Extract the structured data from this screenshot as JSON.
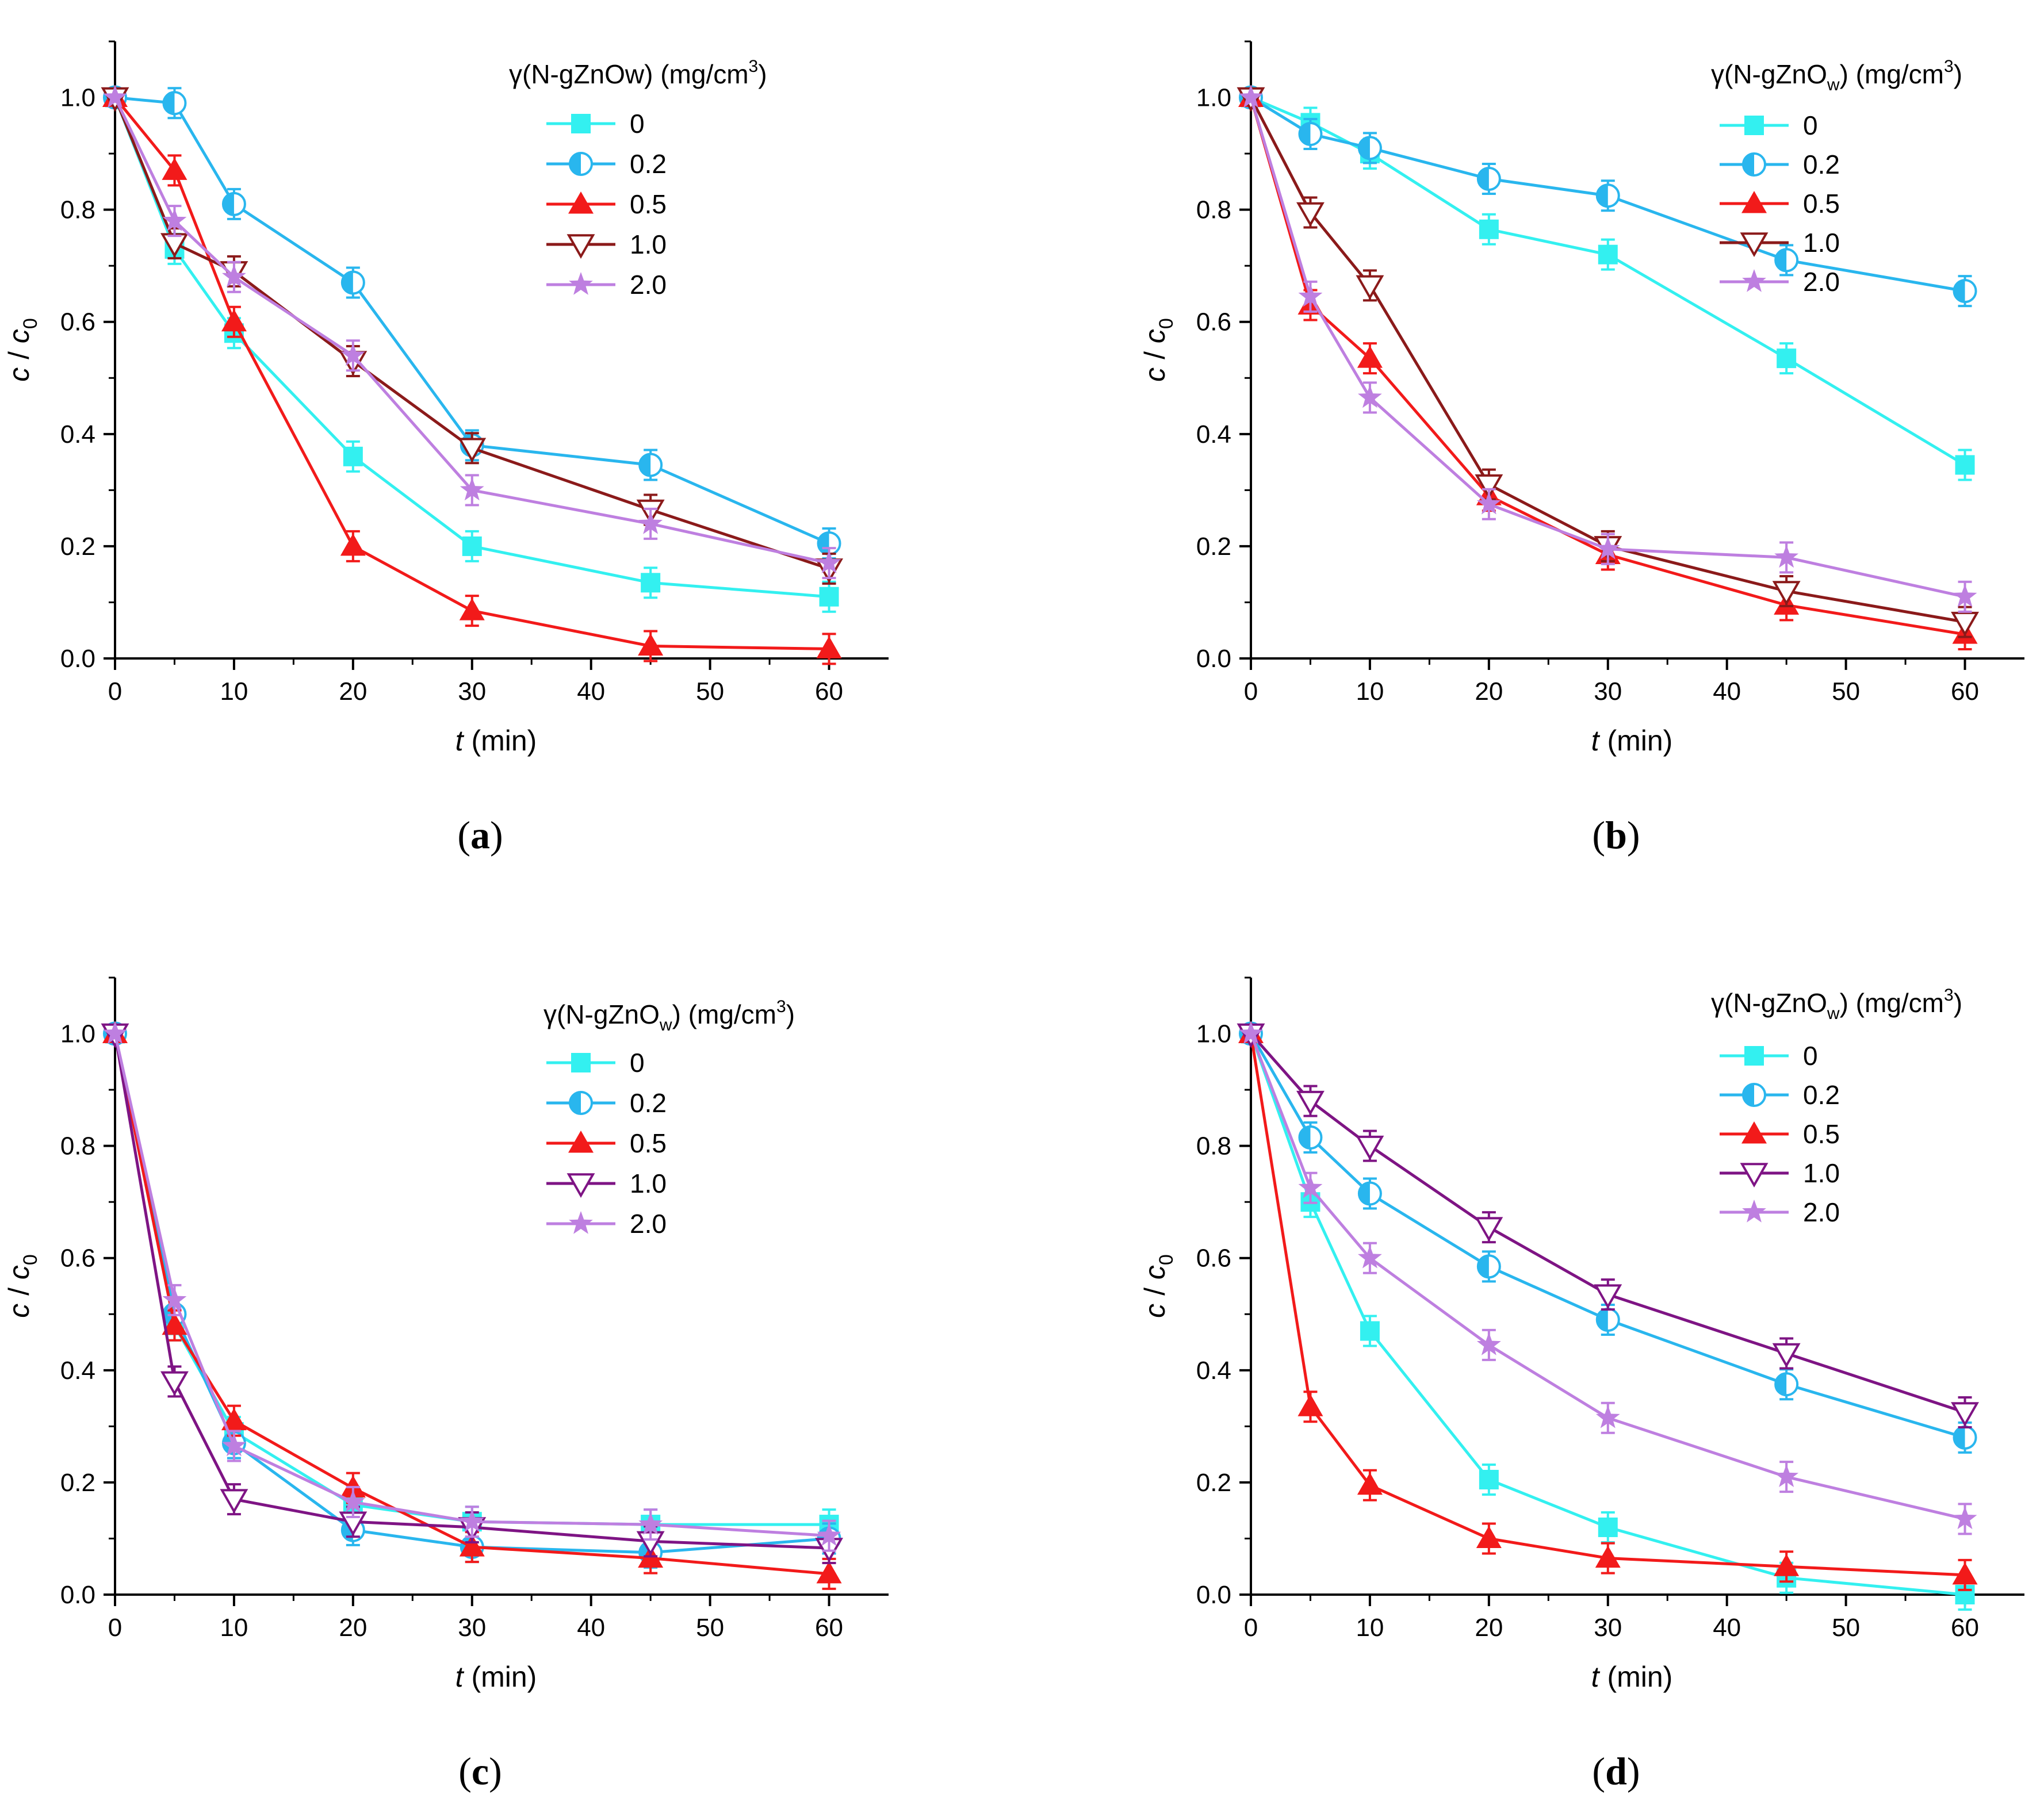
{
  "colors": {
    "s0": "#33F0F0",
    "s02": "#29B6EE",
    "s05": "#F21A1A",
    "s10_a": "#8B1A1A",
    "s10_b": "#8B1A1A",
    "s10_c": "#7E1484",
    "s10_d": "#7E1484",
    "s20": "#BE7FE0"
  },
  "chart_data": [
    {
      "type": "line",
      "panel_label": "a",
      "legend_title": "γ(N-gZnOw) (mg/cm³)",
      "legend_title_parts": {
        "main": "γ(N-gZnOw) (mg/cm",
        "sup": "3",
        "close": ")"
      },
      "legend_placement": "top-right",
      "xlabel": {
        "italic": "t",
        "rest": " (min)"
      },
      "ylabel": {
        "italic_c": "c",
        "slash": " / ",
        "italic_c0": "c",
        "sub": "0"
      },
      "xlim": [
        0,
        65
      ],
      "ylim": [
        0,
        1.1
      ],
      "xticks": [
        "0",
        "10",
        "20",
        "30",
        "40",
        "50",
        "60"
      ],
      "yticks": [
        "0.0",
        "0.2",
        "0.4",
        "0.6",
        "0.8",
        "1.0"
      ],
      "x": [
        0,
        5,
        10,
        20,
        30,
        45,
        60
      ],
      "series": [
        {
          "name": "0",
          "marker": "square",
          "values": [
            1.0,
            0.73,
            0.58,
            0.36,
            0.2,
            0.135,
            0.11
          ]
        },
        {
          "name": "0.2",
          "marker": "halfcircle",
          "values": [
            1.0,
            0.99,
            0.81,
            0.67,
            0.38,
            0.345,
            0.205
          ]
        },
        {
          "name": "0.5",
          "marker": "triangle-up",
          "values": [
            1.0,
            0.87,
            0.6,
            0.2,
            0.085,
            0.022,
            0.017
          ]
        },
        {
          "name": "1.0",
          "marker": "triangle-down",
          "values": [
            1.0,
            0.74,
            0.69,
            0.53,
            0.375,
            0.265,
            0.16
          ]
        },
        {
          "name": "2.0",
          "marker": "star",
          "values": [
            1.0,
            0.78,
            0.68,
            0.54,
            0.3,
            0.24,
            0.17
          ]
        }
      ]
    },
    {
      "type": "line",
      "panel_label": "b",
      "legend_title": "γ(N-gZnOw) (mg/cm³)",
      "legend_title_parts": {
        "main": "γ(N-gZnO",
        "sub": "w",
        "mid": ") (mg/cm",
        "sup": "3",
        "close": ")"
      },
      "legend_placement": "top-right",
      "xlabel": {
        "italic": "t",
        "rest": " (min)"
      },
      "ylabel": {
        "italic_c": "c",
        "slash": " / ",
        "italic_c0": "c",
        "sub": "0"
      },
      "xlim": [
        0,
        65
      ],
      "ylim": [
        0,
        1.1
      ],
      "xticks": [
        "0",
        "10",
        "20",
        "30",
        "40",
        "50",
        "60"
      ],
      "yticks": [
        "0.0",
        "0.2",
        "0.4",
        "0.6",
        "0.8",
        "1.0"
      ],
      "x": [
        0,
        5,
        10,
        20,
        30,
        45,
        60
      ],
      "series": [
        {
          "name": "0",
          "marker": "square",
          "values": [
            1.0,
            0.955,
            0.9,
            0.765,
            0.72,
            0.535,
            0.345
          ]
        },
        {
          "name": "0.2",
          "marker": "halfcircle",
          "values": [
            1.0,
            0.935,
            0.91,
            0.855,
            0.825,
            0.71,
            0.655
          ]
        },
        {
          "name": "0.5",
          "marker": "triangle-up",
          "values": [
            1.0,
            0.63,
            0.535,
            0.29,
            0.185,
            0.095,
            0.043
          ]
        },
        {
          "name": "1.0",
          "marker": "triangle-down",
          "values": [
            1.0,
            0.795,
            0.665,
            0.31,
            0.2,
            0.12,
            0.065
          ]
        },
        {
          "name": "2.0",
          "marker": "star",
          "values": [
            1.0,
            0.645,
            0.465,
            0.275,
            0.195,
            0.18,
            0.11
          ]
        }
      ]
    },
    {
      "type": "line",
      "panel_label": "c",
      "legend_title": "γ(N-gZnOw) (mg/cm³)",
      "legend_title_parts": {
        "main": "γ(N-gZnO",
        "sub": "w",
        "mid": ") (mg/cm",
        "sup": "3",
        "close": ")"
      },
      "legend_placement": "top-right",
      "xlabel": {
        "italic": "t",
        "rest": " (min)"
      },
      "ylabel": {
        "italic_c": "c",
        "slash": " / ",
        "italic_c0": "c",
        "sub": "0"
      },
      "xlim": [
        0,
        65
      ],
      "ylim": [
        0,
        1.1
      ],
      "xticks": [
        "0",
        "10",
        "20",
        "30",
        "40",
        "50",
        "60"
      ],
      "yticks": [
        "0.0",
        "0.2",
        "0.4",
        "0.6",
        "0.8",
        "1.0"
      ],
      "x": [
        0,
        5,
        10,
        20,
        30,
        45,
        60
      ],
      "series": [
        {
          "name": "0",
          "marker": "square",
          "values": [
            1.0,
            0.48,
            0.29,
            0.16,
            0.13,
            0.125,
            0.125
          ]
        },
        {
          "name": "0.2",
          "marker": "halfcircle",
          "values": [
            1.0,
            0.5,
            0.27,
            0.115,
            0.085,
            0.075,
            0.1
          ]
        },
        {
          "name": "0.5",
          "marker": "triangle-up",
          "values": [
            1.0,
            0.48,
            0.31,
            0.19,
            0.085,
            0.065,
            0.037
          ]
        },
        {
          "name": "1.0",
          "marker": "triangle-down",
          "values": [
            1.0,
            0.38,
            0.17,
            0.13,
            0.12,
            0.095,
            0.083
          ]
        },
        {
          "name": "2.0",
          "marker": "star",
          "values": [
            1.0,
            0.525,
            0.265,
            0.165,
            0.13,
            0.125,
            0.105
          ]
        }
      ]
    },
    {
      "type": "line",
      "panel_label": "d",
      "legend_title": "γ(N-gZnOw) (mg/cm³)",
      "legend_title_parts": {
        "main": "γ(N-gZnO",
        "sub": "w",
        "mid": ") (mg/cm",
        "sup": "3",
        "close": ")"
      },
      "legend_placement": "top-right",
      "xlabel": {
        "italic": "t",
        "rest": " (min)"
      },
      "ylabel": {
        "italic_c": "c",
        "slash": " / ",
        "italic_c0": "c",
        "sub": "0"
      },
      "xlim": [
        0,
        65
      ],
      "ylim": [
        0,
        1.1
      ],
      "xticks": [
        "0",
        "10",
        "20",
        "30",
        "40",
        "50",
        "60"
      ],
      "yticks": [
        "0.0",
        "0.2",
        "0.4",
        "0.6",
        "0.8",
        "1.0"
      ],
      "x": [
        0,
        5,
        10,
        20,
        30,
        45,
        60
      ],
      "series": [
        {
          "name": "0",
          "marker": "square",
          "values": [
            1.0,
            0.7,
            0.47,
            0.205,
            0.12,
            0.03,
            0.0
          ]
        },
        {
          "name": "0.2",
          "marker": "halfcircle",
          "values": [
            1.0,
            0.815,
            0.715,
            0.585,
            0.49,
            0.375,
            0.28
          ]
        },
        {
          "name": "0.5",
          "marker": "triangle-up",
          "values": [
            1.0,
            0.335,
            0.195,
            0.1,
            0.065,
            0.05,
            0.035
          ]
        },
        {
          "name": "1.0",
          "marker": "triangle-down",
          "values": [
            1.0,
            0.88,
            0.8,
            0.655,
            0.535,
            0.43,
            0.325
          ]
        },
        {
          "name": "2.0",
          "marker": "star",
          "values": [
            1.0,
            0.725,
            0.6,
            0.445,
            0.315,
            0.21,
            0.135
          ]
        }
      ]
    }
  ]
}
